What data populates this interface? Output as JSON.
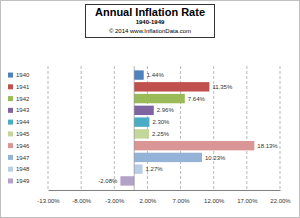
{
  "chart_data": {
    "type": "bar",
    "orientation": "horizontal",
    "title": "Annual Inflation Rate",
    "subtitle": "1940-1949",
    "annotations": [
      "© 2014 www.InflationData.com"
    ],
    "categories": [
      "1940",
      "1941",
      "1942",
      "1943",
      "1944",
      "1945",
      "1946",
      "1947",
      "1948",
      "1949"
    ],
    "values": [
      1.44,
      11.35,
      7.64,
      2.96,
      2.3,
      2.25,
      18.13,
      10.23,
      1.27,
      -2.08
    ],
    "value_labels": [
      "1.44%",
      "11.35%",
      "7.64%",
      "2.96%",
      "2.30%",
      "2.25%",
      "18.13%",
      "10.23%",
      "1.27%",
      "-2.08%"
    ],
    "colors": [
      "#4f81bd",
      "#c0504d",
      "#9bbb59",
      "#8064a2",
      "#4bacc6",
      "#c3d69b",
      "#d99694",
      "#95b3d7",
      "#b9cde5",
      "#b3a2c7"
    ],
    "xlim": [
      -13,
      22
    ],
    "xticks": [
      {
        "value": -13,
        "label": "-13.00%"
      },
      {
        "value": -8,
        "label": "-8.00%"
      },
      {
        "value": -3,
        "label": "-3.00%"
      },
      {
        "value": 2,
        "label": "2.00%"
      },
      {
        "value": 7,
        "label": "7.00%"
      },
      {
        "value": 12,
        "label": "12.00%"
      },
      {
        "value": 17,
        "label": "17.00%"
      },
      {
        "value": 22,
        "label": "22.00%"
      }
    ],
    "grid": true,
    "legend": "left",
    "data_labels": true,
    "tick_labels": "x"
  }
}
